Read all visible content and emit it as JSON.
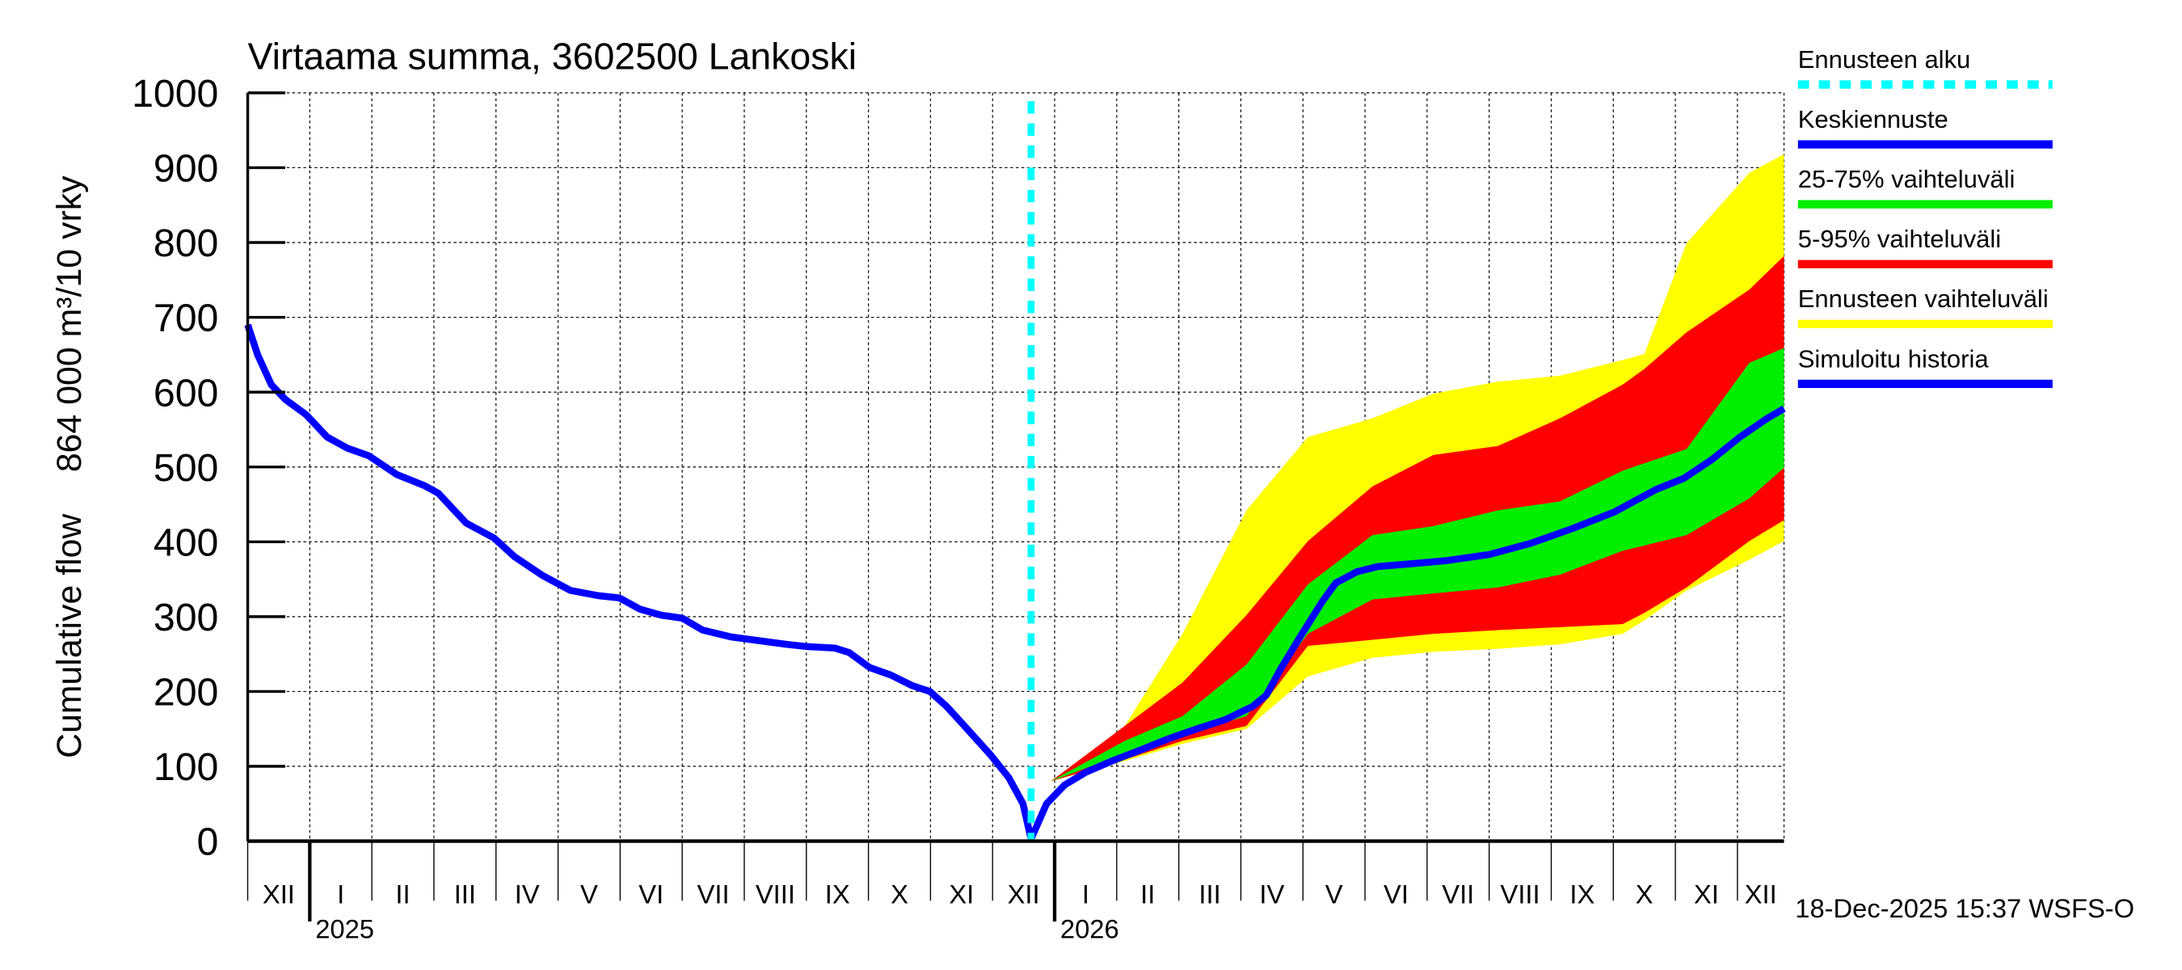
{
  "chart_data": {
    "type": "area",
    "title": "Virtaama summa, 3602500 Lankoski",
    "ylabel_parts": [
      "Cumulative flow",
      "864 000 m³/10 vrky"
    ],
    "xlabel": "",
    "ylim": [
      0,
      1000
    ],
    "yticks": [
      0,
      100,
      200,
      300,
      400,
      500,
      600,
      700,
      800,
      900,
      1000
    ],
    "xlim_months": [
      0,
      24.75
    ],
    "x_unit": "months since start of December 2024",
    "grid": true,
    "month_labels": [
      "XII",
      "I",
      "II",
      "III",
      "IV",
      "V",
      "VI",
      "VII",
      "VIII",
      "IX",
      "X",
      "XI",
      "XII",
      "I",
      "II",
      "III",
      "IV",
      "V",
      "VI",
      "VII",
      "VIII",
      "IX",
      "X",
      "XI",
      "XII"
    ],
    "year_labels": [
      {
        "label": "2025",
        "month": 1
      },
      {
        "label": "2026",
        "month": 13
      }
    ],
    "forecast_start": 12.62,
    "history": {
      "name": "Simuloitu historia",
      "x": [
        0,
        0.16,
        0.38,
        0.61,
        0.94,
        1.28,
        1.61,
        1.95,
        2.4,
        2.85,
        3.07,
        3.52,
        3.97,
        4.3,
        4.75,
        5.2,
        5.65,
        5.99,
        6.32,
        6.66,
        7.0,
        7.33,
        7.78,
        8.23,
        8.68,
        9.01,
        9.46,
        9.69,
        10.02,
        10.36,
        10.7,
        10.99,
        11.26,
        11.59,
        11.97,
        12.26,
        12.49,
        12.62
      ],
      "y": [
        690,
        650,
        610,
        590,
        570,
        540,
        525,
        515,
        490,
        475,
        465,
        425,
        405,
        380,
        355,
        335,
        328,
        325,
        310,
        302,
        298,
        282,
        273,
        268,
        263,
        260,
        258,
        252,
        232,
        222,
        208,
        200,
        180,
        150,
        115,
        85,
        50,
        3
      ]
    },
    "median": {
      "name": "Keskiennuste",
      "x": [
        12.62,
        12.87,
        13.16,
        13.5,
        13.95,
        14.39,
        14.84,
        15.29,
        15.74,
        16.19,
        16.41,
        16.64,
        16.97,
        17.31,
        17.53,
        17.87,
        18.21,
        18.65,
        19.33,
        20.0,
        20.67,
        21.35,
        22.02,
        22.69,
        23.14,
        23.59,
        24.04,
        24.48,
        24.75
      ],
      "y": [
        3,
        50,
        75,
        92,
        108,
        122,
        137,
        150,
        162,
        180,
        195,
        230,
        275,
        320,
        345,
        360,
        367,
        370,
        375,
        383,
        398,
        418,
        440,
        470,
        485,
        510,
        540,
        565,
        578
      ]
    },
    "bands_x": [
      12.62,
      12.94,
      14.13,
      15.06,
      16.09,
      17.08,
      18.12,
      19.1,
      20.14,
      21.14,
      22.15,
      22.5,
      23.18,
      24.19,
      24.75
    ],
    "bands": [
      {
        "name": "Ennusteen vaihteluväli",
        "color": "#ffff00",
        "lower": [
          3,
          80,
          107,
          130,
          150,
          220,
          245,
          253,
          257,
          263,
          277,
          295,
          335,
          376,
          401
        ],
        "upper": [
          3,
          80,
          154,
          277,
          442,
          540,
          565,
          598,
          614,
          622,
          643,
          651,
          799,
          893,
          918
        ]
      },
      {
        "name": "5-95% vaihteluväli",
        "color": "#ff0000",
        "lower": [
          3,
          80,
          109,
          134,
          154,
          261,
          269,
          277,
          282,
          286,
          290,
          305,
          339,
          401,
          429
        ],
        "upper": [
          3,
          80,
          154,
          212,
          302,
          401,
          474,
          516,
          528,
          565,
          610,
          631,
          680,
          737,
          782
        ]
      },
      {
        "name": "25-75% vaihteluväli",
        "color": "#00ee00",
        "lower": [
          3,
          80,
          117,
          142,
          167,
          277,
          323,
          331,
          339,
          356,
          388,
          395,
          409,
          458,
          499
        ],
        "upper": [
          3,
          80,
          134,
          167,
          236,
          343,
          409,
          421,
          442,
          454,
          495,
          505,
          524,
          639,
          659
        ]
      }
    ],
    "legend": [
      {
        "label": "Ennusteen alku",
        "color": "#00ffff",
        "style": "dashed"
      },
      {
        "label": "Keskiennuste",
        "color": "#0000ff",
        "style": "solid"
      },
      {
        "label": "25-75% vaihteluväli",
        "color": "#00ee00",
        "style": "solid"
      },
      {
        "label": "5-95% vaihteluväli",
        "color": "#ff0000",
        "style": "solid"
      },
      {
        "label": "Ennusteen vaihteluväli",
        "color": "#ffff00",
        "style": "solid"
      },
      {
        "label": "Simuloitu historia",
        "color": "#0000ff",
        "style": "solid"
      }
    ],
    "legend_position": "right",
    "timestamp": "18-Dec-2025 15:37 WSFS-O"
  }
}
